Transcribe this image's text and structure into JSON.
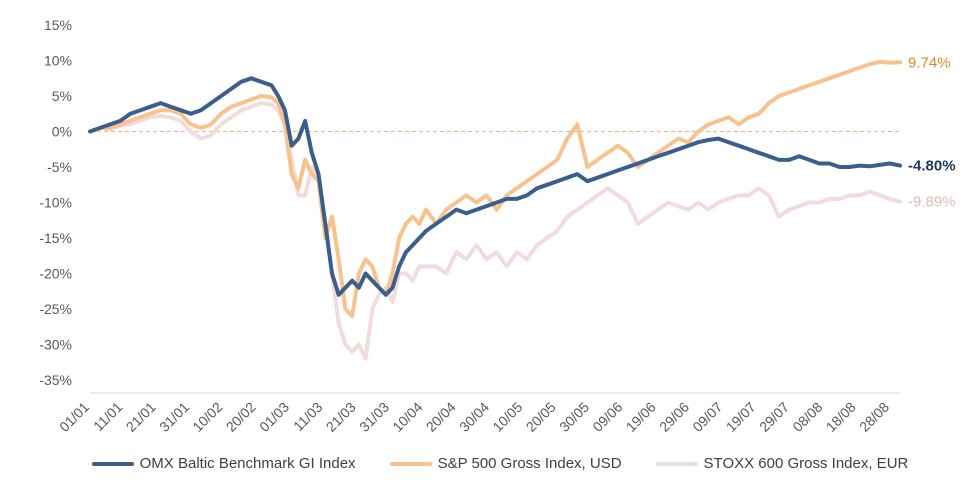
{
  "chart_data": {
    "type": "line",
    "ylim": [
      -35,
      15
    ],
    "y_ticks": [
      "15%",
      "10%",
      "5%",
      "0%",
      "-5%",
      "-10%",
      "-15%",
      "-20%",
      "-25%",
      "-30%",
      "-35%"
    ],
    "x_ticks": [
      "01/01",
      "11/01",
      "21/01",
      "31/01",
      "10/02",
      "20/02",
      "01/03",
      "11/03",
      "21/03",
      "31/03",
      "10/04",
      "20/04",
      "30/04",
      "10/05",
      "20/05",
      "30/05",
      "09/06",
      "19/06",
      "29/06",
      "09/07",
      "19/07",
      "29/07",
      "08/08",
      "18/08",
      "28/08"
    ],
    "x_range_days": [
      0,
      241
    ],
    "zero_line": true,
    "grid": false,
    "legend_position": "bottom",
    "series": [
      {
        "name": "STOXX 600 Gross Index, EUR",
        "color": "#f2dcdb",
        "end_label": "-9.89%",
        "end_label_color": "#e6b9b8",
        "x": [
          0,
          3,
          6,
          9,
          12,
          15,
          18,
          21,
          24,
          27,
          30,
          33,
          36,
          39,
          42,
          45,
          48,
          51,
          54,
          56,
          58,
          60,
          62,
          64,
          66,
          68,
          70,
          72,
          74,
          76,
          78,
          80,
          82,
          84,
          86,
          88,
          90,
          92,
          94,
          96,
          98,
          100,
          103,
          106,
          109,
          112,
          115,
          118,
          121,
          124,
          127,
          130,
          133,
          136,
          139,
          142,
          145,
          148,
          151,
          154,
          157,
          160,
          163,
          166,
          169,
          172,
          175,
          178,
          181,
          184,
          187,
          190,
          193,
          196,
          199,
          202,
          205,
          208,
          211,
          214,
          217,
          220,
          223,
          226,
          229,
          232,
          235,
          238,
          241
        ],
        "values": [
          0,
          0.5,
          0.3,
          0.8,
          1,
          1.5,
          2,
          2.2,
          2,
          1.5,
          0,
          -1,
          -0.5,
          1,
          2,
          3,
          3.5,
          4,
          3.8,
          3,
          1,
          -4,
          -9,
          -9,
          -5,
          -7,
          -13,
          -20,
          -27,
          -30,
          -31,
          -30,
          -32,
          -25,
          -23,
          -22,
          -24,
          -20,
          -20,
          -21,
          -19,
          -19,
          -19,
          -20,
          -17,
          -18,
          -16,
          -18,
          -17,
          -19,
          -17,
          -18,
          -16,
          -15,
          -14,
          -12,
          -11,
          -10,
          -9,
          -8,
          -9,
          -10,
          -13,
          -12,
          -11,
          -10,
          -10.5,
          -11,
          -10,
          -11,
          -10,
          -9.5,
          -9,
          -9,
          -8,
          -9,
          -12,
          -11,
          -10.5,
          -10,
          -10,
          -9.5,
          -9.5,
          -9,
          -9,
          -8.5,
          -9,
          -9.5,
          -9.89
        ]
      },
      {
        "name": "S&P 500 Gross Index, USD",
        "color": "#f7c28d",
        "end_label": "9.74%",
        "end_label_color": "#d98b1f",
        "x": [
          0,
          3,
          6,
          9,
          12,
          15,
          18,
          21,
          24,
          27,
          30,
          33,
          36,
          39,
          42,
          45,
          48,
          51,
          54,
          56,
          58,
          60,
          62,
          64,
          66,
          68,
          70,
          72,
          74,
          76,
          78,
          80,
          82,
          84,
          86,
          88,
          90,
          92,
          94,
          96,
          98,
          100,
          103,
          106,
          109,
          112,
          115,
          118,
          121,
          124,
          127,
          130,
          133,
          136,
          139,
          142,
          145,
          148,
          151,
          154,
          157,
          160,
          163,
          166,
          169,
          172,
          175,
          178,
          181,
          184,
          187,
          190,
          193,
          196,
          199,
          202,
          205,
          208,
          211,
          214,
          217,
          220,
          223,
          226,
          229,
          232,
          235,
          238,
          241
        ],
        "values": [
          0,
          0.5,
          0.5,
          1,
          1.5,
          2,
          2.5,
          3,
          3,
          2.5,
          1,
          0.5,
          1,
          2.5,
          3.5,
          4,
          4.5,
          5,
          4.8,
          4,
          1,
          -6,
          -8,
          -4,
          -6,
          -7,
          -15,
          -12,
          -18,
          -25,
          -26,
          -20,
          -18,
          -19,
          -22,
          -23,
          -20,
          -15,
          -13,
          -12,
          -13,
          -11,
          -13,
          -11,
          -10,
          -9,
          -10,
          -9,
          -11,
          -9,
          -8,
          -7,
          -6,
          -5,
          -4,
          -1,
          1,
          -5,
          -4,
          -3,
          -2,
          -3,
          -5,
          -4,
          -3,
          -2,
          -1,
          -1.5,
          0,
          1,
          1.5,
          2,
          1,
          2,
          2.5,
          4,
          5,
          5.5,
          6,
          6.5,
          7,
          7.5,
          8,
          8.5,
          9,
          9.5,
          9.8,
          9.7,
          9.74
        ]
      },
      {
        "name": "OMX Baltic Benchmark GI Index",
        "color": "#3b5e8c",
        "end_label": "-4.80%",
        "end_label_color": "#1f3a60",
        "x": [
          0,
          3,
          6,
          9,
          12,
          15,
          18,
          21,
          24,
          27,
          30,
          33,
          36,
          39,
          42,
          45,
          48,
          51,
          54,
          56,
          58,
          60,
          62,
          64,
          66,
          68,
          70,
          72,
          74,
          76,
          78,
          80,
          82,
          84,
          86,
          88,
          90,
          92,
          94,
          96,
          98,
          100,
          103,
          106,
          109,
          112,
          115,
          118,
          121,
          124,
          127,
          130,
          133,
          136,
          139,
          142,
          145,
          148,
          151,
          154,
          157,
          160,
          163,
          166,
          169,
          172,
          175,
          178,
          181,
          184,
          187,
          190,
          193,
          196,
          199,
          202,
          205,
          208,
          211,
          214,
          217,
          220,
          223,
          226,
          229,
          232,
          235,
          238,
          241
        ],
        "values": [
          0,
          0.5,
          1,
          1.5,
          2.5,
          3,
          3.5,
          4,
          3.5,
          3,
          2.5,
          3,
          4,
          5,
          6,
          7,
          7.5,
          7,
          6.5,
          5,
          3,
          -2,
          -1,
          1.5,
          -3,
          -6,
          -13,
          -20,
          -23,
          -22,
          -21,
          -22,
          -20,
          -21,
          -22,
          -23,
          -22,
          -19,
          -17,
          -16,
          -15,
          -14,
          -13,
          -12,
          -11,
          -11.5,
          -11,
          -10.5,
          -10,
          -9.5,
          -9.5,
          -9,
          -8,
          -7.5,
          -7,
          -6.5,
          -6,
          -7,
          -6.5,
          -6,
          -5.5,
          -5,
          -4.5,
          -4,
          -3.5,
          -3,
          -2.5,
          -2,
          -1.5,
          -1.2,
          -1,
          -1.5,
          -2,
          -2.5,
          -3,
          -3.5,
          -4,
          -4,
          -3.5,
          -4,
          -4.5,
          -4.5,
          -5,
          -5,
          -4.8,
          -4.9,
          -4.7,
          -4.5,
          -4.8
        ]
      }
    ]
  }
}
